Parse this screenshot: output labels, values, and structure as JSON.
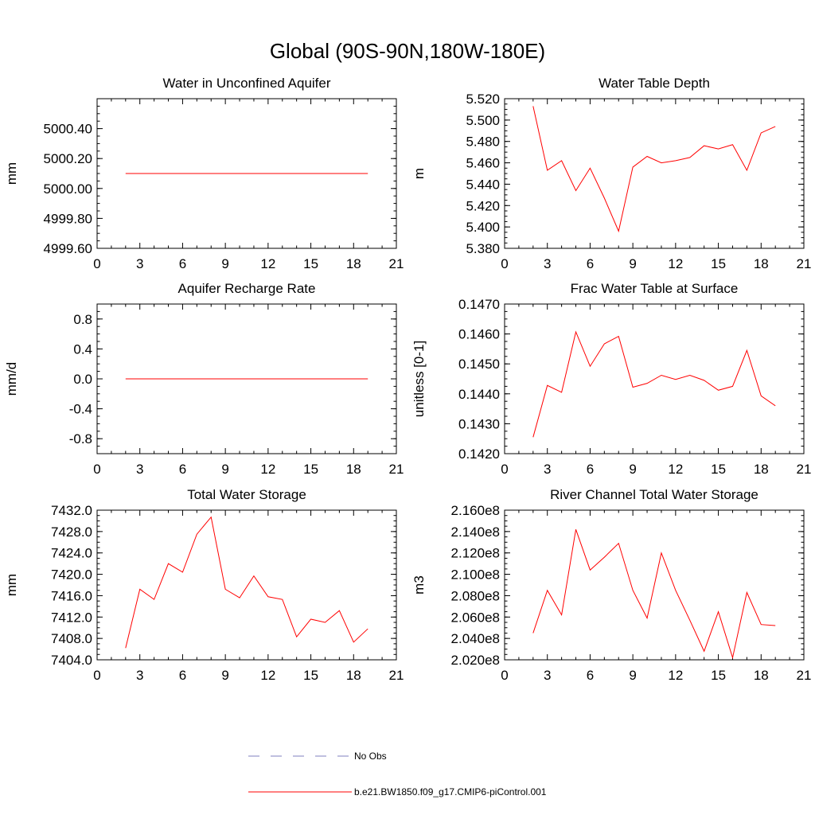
{
  "figure": {
    "title": "Global (90S-90N,180W-180E)"
  },
  "legend": {
    "entries": [
      {
        "label": "No Obs",
        "color": "#7f7fbf",
        "style": "dashed"
      },
      {
        "label": "b.e21.BW1850.f09_g17.CMIP6-piControl.001",
        "color": "#ff0000",
        "style": "solid"
      }
    ]
  },
  "chart_data": [
    {
      "type": "line",
      "title": "Water in Unconfined Aquifer",
      "xlabel": "",
      "ylabel": "mm",
      "xlim": [
        0,
        21
      ],
      "ylim": [
        4999.6,
        5000.6
      ],
      "xticks": [
        "0",
        "3",
        "6",
        "9",
        "12",
        "15",
        "18",
        "21"
      ],
      "xtick_values": [
        0,
        3,
        6,
        9,
        12,
        15,
        18,
        21
      ],
      "yticks": [
        "4999.60",
        "4999.80",
        "5000.00",
        "5000.20",
        "5000.40"
      ],
      "ytick_values": [
        4999.6,
        4999.8,
        5000.0,
        5000.2,
        5000.4
      ],
      "grid": false,
      "x": [
        2,
        19
      ],
      "series": [
        {
          "name": "b.e21.BW1850.f09_g17.CMIP6-piControl.001",
          "color": "#ff0000",
          "values": [
            5000.1,
            5000.1
          ]
        }
      ]
    },
    {
      "type": "line",
      "title": "Water Table Depth",
      "xlabel": "",
      "ylabel": "m",
      "xlim": [
        0,
        21
      ],
      "ylim": [
        5.38,
        5.52
      ],
      "xticks": [
        "0",
        "3",
        "6",
        "9",
        "12",
        "15",
        "18",
        "21"
      ],
      "xtick_values": [
        0,
        3,
        6,
        9,
        12,
        15,
        18,
        21
      ],
      "yticks": [
        "5.380",
        "5.400",
        "5.420",
        "5.440",
        "5.460",
        "5.480",
        "5.500",
        "5.520"
      ],
      "ytick_values": [
        5.38,
        5.4,
        5.42,
        5.44,
        5.46,
        5.48,
        5.5,
        5.52
      ],
      "grid": false,
      "x": [
        2,
        3,
        4,
        5,
        6,
        7,
        8,
        9,
        10,
        11,
        12,
        13,
        14,
        15,
        16,
        17,
        18,
        19
      ],
      "series": [
        {
          "name": "b.e21.BW1850.f09_g17.CMIP6-piControl.001",
          "color": "#ff0000",
          "values": [
            5.513,
            5.453,
            5.462,
            5.434,
            5.455,
            5.427,
            5.396,
            5.456,
            5.466,
            5.46,
            5.462,
            5.465,
            5.476,
            5.473,
            5.477,
            5.453,
            5.488,
            5.494
          ]
        }
      ]
    },
    {
      "type": "line",
      "title": "Aquifer Recharge Rate",
      "xlabel": "",
      "ylabel": "mm/d",
      "xlim": [
        0,
        21
      ],
      "ylim": [
        -1.0,
        1.0
      ],
      "xticks": [
        "0",
        "3",
        "6",
        "9",
        "12",
        "15",
        "18",
        "21"
      ],
      "xtick_values": [
        0,
        3,
        6,
        9,
        12,
        15,
        18,
        21
      ],
      "yticks": [
        "-0.8",
        "-0.4",
        "0.0",
        "0.4",
        "0.8"
      ],
      "ytick_values": [
        -0.8,
        -0.4,
        0.0,
        0.4,
        0.8
      ],
      "grid": false,
      "x": [
        2,
        19
      ],
      "series": [
        {
          "name": "b.e21.BW1850.f09_g17.CMIP6-piControl.001",
          "color": "#ff0000",
          "values": [
            0.0,
            0.0
          ]
        }
      ]
    },
    {
      "type": "line",
      "title": "Frac Water Table at Surface",
      "xlabel": "",
      "ylabel": "unitless [0-1]",
      "xlim": [
        0,
        21
      ],
      "ylim": [
        0.142,
        0.147
      ],
      "xticks": [
        "0",
        "3",
        "6",
        "9",
        "12",
        "15",
        "18",
        "21"
      ],
      "xtick_values": [
        0,
        3,
        6,
        9,
        12,
        15,
        18,
        21
      ],
      "yticks": [
        "0.1420",
        "0.1430",
        "0.1440",
        "0.1450",
        "0.1460",
        "0.1470"
      ],
      "ytick_values": [
        0.142,
        0.143,
        0.144,
        0.145,
        0.146,
        0.147
      ],
      "grid": false,
      "x": [
        2,
        3,
        4,
        5,
        6,
        7,
        8,
        9,
        10,
        11,
        12,
        13,
        14,
        15,
        16,
        17,
        18,
        19
      ],
      "series": [
        {
          "name": "b.e21.BW1850.f09_g17.CMIP6-piControl.001",
          "color": "#ff0000",
          "values": [
            0.14255,
            0.14428,
            0.14405,
            0.14607,
            0.14492,
            0.14567,
            0.14592,
            0.14422,
            0.14435,
            0.14462,
            0.14448,
            0.14462,
            0.14445,
            0.14412,
            0.14425,
            0.14545,
            0.14393,
            0.1436
          ]
        }
      ]
    },
    {
      "type": "line",
      "title": "Total Water Storage",
      "xlabel": "",
      "ylabel": "mm",
      "xlim": [
        0,
        21
      ],
      "ylim": [
        7404.0,
        7432.0
      ],
      "xticks": [
        "0",
        "3",
        "6",
        "9",
        "12",
        "15",
        "18",
        "21"
      ],
      "xtick_values": [
        0,
        3,
        6,
        9,
        12,
        15,
        18,
        21
      ],
      "yticks": [
        "7404.0",
        "7408.0",
        "7412.0",
        "7416.0",
        "7420.0",
        "7424.0",
        "7428.0",
        "7432.0"
      ],
      "ytick_values": [
        7404,
        7408,
        7412,
        7416,
        7420,
        7424,
        7428,
        7432
      ],
      "grid": false,
      "x": [
        2,
        3,
        4,
        5,
        6,
        7,
        8,
        9,
        10,
        11,
        12,
        13,
        14,
        15,
        16,
        17,
        18,
        19
      ],
      "series": [
        {
          "name": "b.e21.BW1850.f09_g17.CMIP6-piControl.001",
          "color": "#ff0000",
          "values": [
            7406.2,
            7417.2,
            7415.3,
            7422.0,
            7420.4,
            7427.5,
            7430.7,
            7417.2,
            7415.6,
            7419.7,
            7415.8,
            7415.3,
            7408.3,
            7411.6,
            7411.0,
            7413.2,
            7407.3,
            7409.8
          ]
        }
      ]
    },
    {
      "type": "line",
      "title": "River Channel Total Water Storage",
      "xlabel": "",
      "ylabel": "m3",
      "xlim": [
        0,
        21
      ],
      "ylim": [
        202000000.0,
        216000000.0
      ],
      "xticks": [
        "0",
        "3",
        "6",
        "9",
        "12",
        "15",
        "18",
        "21"
      ],
      "xtick_values": [
        0,
        3,
        6,
        9,
        12,
        15,
        18,
        21
      ],
      "yticks": [
        "2.020e8",
        "2.040e8",
        "2.060e8",
        "2.080e8",
        "2.100e8",
        "2.120e8",
        "2.140e8",
        "2.160e8"
      ],
      "ytick_values": [
        202000000.0,
        204000000.0,
        206000000.0,
        208000000.0,
        210000000.0,
        212000000.0,
        214000000.0,
        216000000.0
      ],
      "grid": false,
      "x": [
        2,
        3,
        4,
        5,
        6,
        7,
        8,
        9,
        10,
        11,
        12,
        13,
        14,
        15,
        16,
        17,
        18,
        19
      ],
      "series": [
        {
          "name": "b.e21.BW1850.f09_g17.CMIP6-piControl.001",
          "color": "#ff0000",
          "values": [
            204500000.0,
            208500000.0,
            206200000.0,
            214200000.0,
            210400000.0,
            211600000.0,
            212900000.0,
            208500000.0,
            205900000.0,
            212000000.0,
            208500000.0,
            205700000.0,
            202800000.0,
            206500000.0,
            202200000.0,
            208300000.0,
            205300000.0,
            205200000.0
          ]
        }
      ]
    }
  ]
}
